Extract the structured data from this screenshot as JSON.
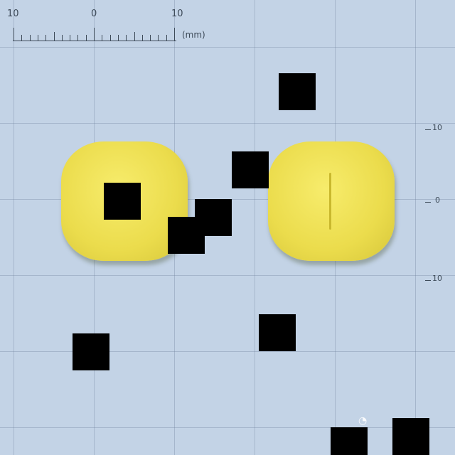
{
  "ruler": {
    "top_labels": [
      "10",
      "0",
      "10"
    ],
    "unit": "(mm)",
    "side_labels": [
      "10",
      "0",
      "10"
    ]
  },
  "tablets": [
    {
      "name": "tablet-left",
      "color": "#ecdd50"
    },
    {
      "name": "tablet-right",
      "color": "#ecdd50",
      "score_line": true
    }
  ],
  "masks": 10,
  "colors": {
    "background": "#c3d3e6",
    "tablet": "#ecdd50",
    "mask": "#000000"
  }
}
